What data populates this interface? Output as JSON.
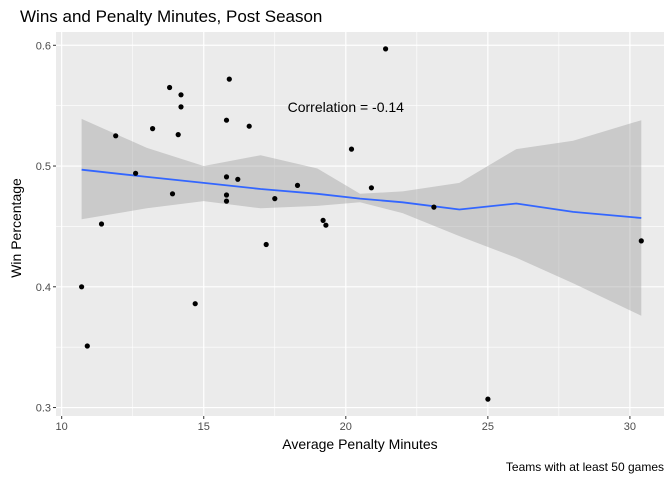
{
  "chart_data": {
    "type": "scatter",
    "title": "Wins and Penalty Minutes, Post Season",
    "xlabel": "Average Penalty Minutes",
    "ylabel": "Win Percentage",
    "caption": "Teams with at least 50 games",
    "annotation": {
      "text": "Correlation = -0.14",
      "x": 20,
      "y": 0.549
    },
    "xlim": [
      9.8,
      31.2
    ],
    "ylim": [
      0.293,
      0.611
    ],
    "xticks": [
      10,
      15,
      20,
      25,
      30
    ],
    "yticks": [
      0.3,
      0.4,
      0.5,
      0.6
    ],
    "ytick_labels": [
      "0.3",
      "0.4",
      "0.5",
      "0.6"
    ],
    "grid": true,
    "points": [
      {
        "x": 10.7,
        "y": 0.4
      },
      {
        "x": 10.9,
        "y": 0.351
      },
      {
        "x": 11.4,
        "y": 0.452
      },
      {
        "x": 11.9,
        "y": 0.525
      },
      {
        "x": 12.6,
        "y": 0.494
      },
      {
        "x": 13.2,
        "y": 0.531
      },
      {
        "x": 13.8,
        "y": 0.565
      },
      {
        "x": 13.9,
        "y": 0.477
      },
      {
        "x": 14.1,
        "y": 0.526
      },
      {
        "x": 14.2,
        "y": 0.559
      },
      {
        "x": 14.2,
        "y": 0.549
      },
      {
        "x": 14.7,
        "y": 0.386
      },
      {
        "x": 15.8,
        "y": 0.538
      },
      {
        "x": 15.8,
        "y": 0.491
      },
      {
        "x": 15.8,
        "y": 0.476
      },
      {
        "x": 15.8,
        "y": 0.471
      },
      {
        "x": 15.9,
        "y": 0.572
      },
      {
        "x": 16.2,
        "y": 0.489
      },
      {
        "x": 16.6,
        "y": 0.533
      },
      {
        "x": 17.2,
        "y": 0.435
      },
      {
        "x": 17.5,
        "y": 0.473
      },
      {
        "x": 18.3,
        "y": 0.484
      },
      {
        "x": 19.2,
        "y": 0.455
      },
      {
        "x": 19.3,
        "y": 0.451
      },
      {
        "x": 20.2,
        "y": 0.514
      },
      {
        "x": 20.9,
        "y": 0.482
      },
      {
        "x": 21.4,
        "y": 0.597
      },
      {
        "x": 23.1,
        "y": 0.466
      },
      {
        "x": 25.0,
        "y": 0.307
      },
      {
        "x": 30.4,
        "y": 0.438
      }
    ],
    "trend": {
      "color": "#3366FF",
      "band_color": "#999999",
      "x": [
        10.7,
        13,
        15,
        17,
        19,
        20.5,
        22,
        24,
        26,
        28,
        30.4
      ],
      "fit": [
        0.497,
        0.491,
        0.486,
        0.481,
        0.477,
        0.473,
        0.47,
        0.464,
        0.469,
        0.462,
        0.457
      ],
      "lower": [
        0.456,
        0.465,
        0.471,
        0.465,
        0.467,
        0.47,
        0.461,
        0.442,
        0.424,
        0.403,
        0.376
      ],
      "upper": [
        0.539,
        0.515,
        0.5,
        0.509,
        0.498,
        0.477,
        0.479,
        0.486,
        0.514,
        0.521,
        0.538
      ]
    }
  }
}
